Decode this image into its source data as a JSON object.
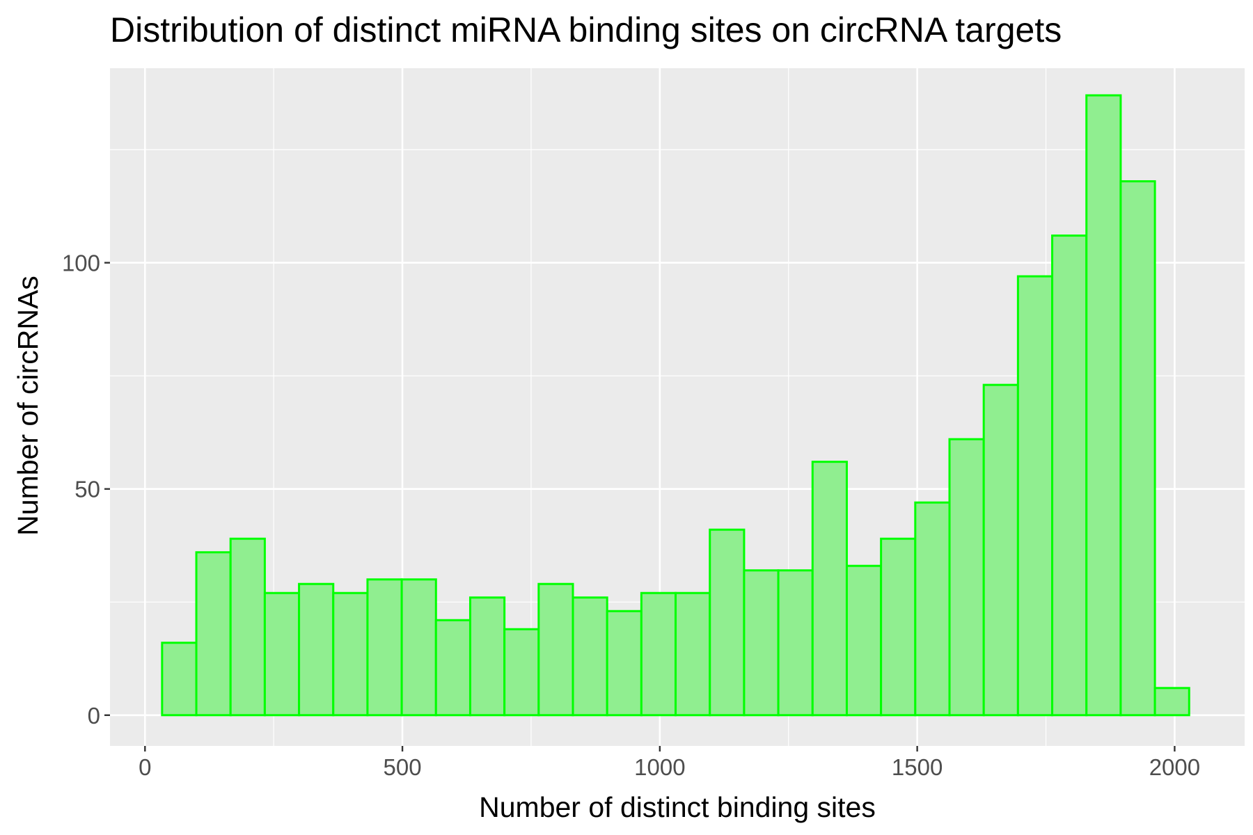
{
  "chart_data": {
    "type": "bar",
    "subtype": "histogram",
    "title": "Distribution of distinct miRNA binding sites on circRNA targets",
    "xlabel": "Number of distinct binding sites",
    "ylabel": "Number of circRNAs",
    "xlim": [
      -68,
      2136
    ],
    "ylim": [
      -6.8,
      143
    ],
    "xticks": [
      0,
      500,
      1000,
      1500,
      2000
    ],
    "xtick_labels": [
      "0",
      "500",
      "1000",
      "1500",
      "2000"
    ],
    "yticks": [
      0,
      50,
      100
    ],
    "ytick_labels": [
      "0",
      "50",
      "100"
    ],
    "x_minor_breaks": [
      250,
      750,
      1250,
      1750
    ],
    "y_minor_breaks": [
      25,
      75,
      125
    ],
    "grid": true,
    "legend": "none",
    "bin_width": 66.5,
    "bins": [
      {
        "start": 33.2,
        "end": 99.7,
        "count": 16
      },
      {
        "start": 99.7,
        "end": 166.2,
        "count": 36
      },
      {
        "start": 166.2,
        "end": 232.7,
        "count": 39
      },
      {
        "start": 232.7,
        "end": 299.2,
        "count": 27
      },
      {
        "start": 299.2,
        "end": 365.7,
        "count": 29
      },
      {
        "start": 365.7,
        "end": 432.2,
        "count": 27
      },
      {
        "start": 432.2,
        "end": 498.7,
        "count": 30
      },
      {
        "start": 498.7,
        "end": 565.2,
        "count": 30
      },
      {
        "start": 565.2,
        "end": 631.7,
        "count": 21
      },
      {
        "start": 631.7,
        "end": 698.2,
        "count": 26
      },
      {
        "start": 698.2,
        "end": 764.7,
        "count": 19
      },
      {
        "start": 764.7,
        "end": 831.2,
        "count": 29
      },
      {
        "start": 831.2,
        "end": 897.7,
        "count": 26
      },
      {
        "start": 897.7,
        "end": 964.2,
        "count": 23
      },
      {
        "start": 964.2,
        "end": 1030.7,
        "count": 27
      },
      {
        "start": 1030.7,
        "end": 1097.2,
        "count": 27
      },
      {
        "start": 1097.2,
        "end": 1163.7,
        "count": 41
      },
      {
        "start": 1163.7,
        "end": 1230.2,
        "count": 32
      },
      {
        "start": 1230.2,
        "end": 1296.7,
        "count": 32
      },
      {
        "start": 1296.7,
        "end": 1363.2,
        "count": 56
      },
      {
        "start": 1363.2,
        "end": 1429.7,
        "count": 33
      },
      {
        "start": 1429.7,
        "end": 1496.2,
        "count": 39
      },
      {
        "start": 1496.2,
        "end": 1562.7,
        "count": 47
      },
      {
        "start": 1562.7,
        "end": 1629.2,
        "count": 61
      },
      {
        "start": 1629.2,
        "end": 1695.7,
        "count": 73
      },
      {
        "start": 1695.7,
        "end": 1762.2,
        "count": 97
      },
      {
        "start": 1762.2,
        "end": 1828.7,
        "count": 106
      },
      {
        "start": 1828.7,
        "end": 1895.2,
        "count": 137
      },
      {
        "start": 1895.2,
        "end": 1961.7,
        "count": 118
      },
      {
        "start": 1961.7,
        "end": 2028.2,
        "count": 6
      }
    ],
    "colors": {
      "bar_fill": "#90ee90",
      "bar_outline": "#00ff00",
      "panel_background": "#ebebeb",
      "grid": "#ffffff",
      "tick_text": "#4d4d4d",
      "tick_mark": "#333333"
    }
  }
}
